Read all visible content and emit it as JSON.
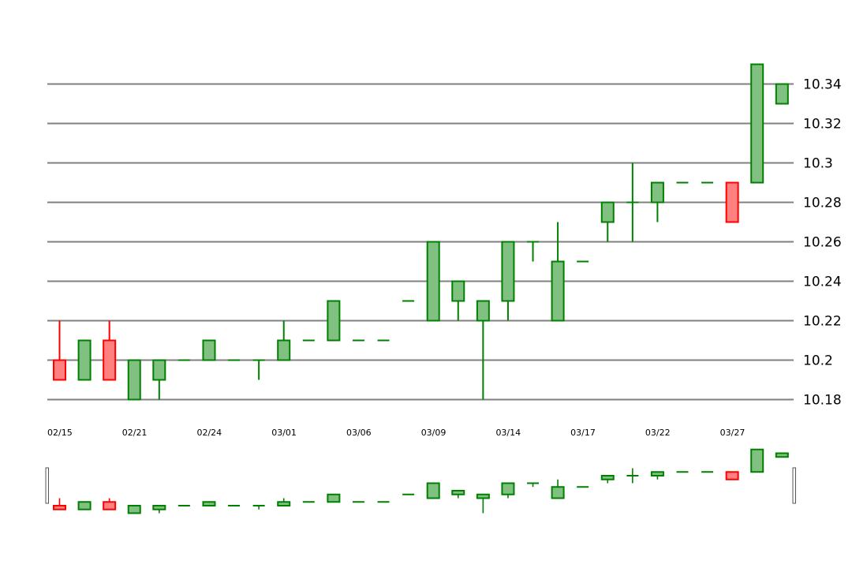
{
  "chart_data": {
    "type": "candlestick",
    "title": "",
    "xlabel": "",
    "ylabel": "",
    "y_axis_side": "right",
    "ylim": [
      10.18,
      10.34
    ],
    "y_ticks": [
      "10.18",
      "10.2",
      "10.22",
      "10.24",
      "10.26",
      "10.28",
      "10.3",
      "10.32",
      "10.34"
    ],
    "x_tick_labels": [
      {
        "index": 0,
        "label": "02/15"
      },
      {
        "index": 3,
        "label": "02/21"
      },
      {
        "index": 6,
        "label": "02/24"
      },
      {
        "index": 9,
        "label": "03/01"
      },
      {
        "index": 12,
        "label": "03/06"
      },
      {
        "index": 15,
        "label": "03/09"
      },
      {
        "index": 18,
        "label": "03/14"
      },
      {
        "index": 21,
        "label": "03/17"
      },
      {
        "index": 24,
        "label": "03/22"
      },
      {
        "index": 27,
        "label": "03/27"
      }
    ],
    "grid": true,
    "colors": {
      "up_fill": "#80c080",
      "up_line": "#008000",
      "down_fill": "#ff8080",
      "down_line": "#ff0000",
      "grid": "#808080"
    },
    "navigator": true,
    "candles": [
      {
        "open": 10.2,
        "high": 10.22,
        "low": 10.19,
        "close": 10.19
      },
      {
        "open": 10.19,
        "high": 10.21,
        "low": 10.19,
        "close": 10.21
      },
      {
        "open": 10.21,
        "high": 10.22,
        "low": 10.19,
        "close": 10.19
      },
      {
        "open": 10.18,
        "high": 10.2,
        "low": 10.18,
        "close": 10.2
      },
      {
        "open": 10.19,
        "high": 10.2,
        "low": 10.18,
        "close": 10.2
      },
      {
        "open": 10.2,
        "high": 10.2,
        "low": 10.2,
        "close": 10.2
      },
      {
        "open": 10.2,
        "high": 10.21,
        "low": 10.2,
        "close": 10.21
      },
      {
        "open": 10.2,
        "high": 10.2,
        "low": 10.2,
        "close": 10.2
      },
      {
        "open": 10.2,
        "high": 10.2,
        "low": 10.19,
        "close": 10.2
      },
      {
        "open": 10.2,
        "high": 10.22,
        "low": 10.2,
        "close": 10.21
      },
      {
        "open": 10.21,
        "high": 10.21,
        "low": 10.21,
        "close": 10.21
      },
      {
        "open": 10.21,
        "high": 10.23,
        "low": 10.21,
        "close": 10.23
      },
      {
        "open": 10.21,
        "high": 10.21,
        "low": 10.21,
        "close": 10.21
      },
      {
        "open": 10.21,
        "high": 10.21,
        "low": 10.21,
        "close": 10.21
      },
      {
        "open": 10.23,
        "high": 10.23,
        "low": 10.23,
        "close": 10.23
      },
      {
        "open": 10.22,
        "high": 10.26,
        "low": 10.22,
        "close": 10.26
      },
      {
        "open": 10.23,
        "high": 10.24,
        "low": 10.22,
        "close": 10.24
      },
      {
        "open": 10.22,
        "high": 10.23,
        "low": 10.18,
        "close": 10.23
      },
      {
        "open": 10.23,
        "high": 10.26,
        "low": 10.22,
        "close": 10.26
      },
      {
        "open": 10.26,
        "high": 10.26,
        "low": 10.25,
        "close": 10.26
      },
      {
        "open": 10.22,
        "high": 10.27,
        "low": 10.22,
        "close": 10.25
      },
      {
        "open": 10.25,
        "high": 10.25,
        "low": 10.25,
        "close": 10.25
      },
      {
        "open": 10.27,
        "high": 10.28,
        "low": 10.26,
        "close": 10.28
      },
      {
        "open": 10.28,
        "high": 10.3,
        "low": 10.26,
        "close": 10.28
      },
      {
        "open": 10.28,
        "high": 10.29,
        "low": 10.27,
        "close": 10.29
      },
      {
        "open": 10.29,
        "high": 10.29,
        "low": 10.29,
        "close": 10.29
      },
      {
        "open": 10.29,
        "high": 10.29,
        "low": 10.29,
        "close": 10.29
      },
      {
        "open": 10.29,
        "high": 10.29,
        "low": 10.27,
        "close": 10.27
      },
      {
        "open": 10.29,
        "high": 10.35,
        "low": 10.29,
        "close": 10.35
      },
      {
        "open": 10.33,
        "high": 10.34,
        "low": 10.33,
        "close": 10.34
      }
    ]
  }
}
